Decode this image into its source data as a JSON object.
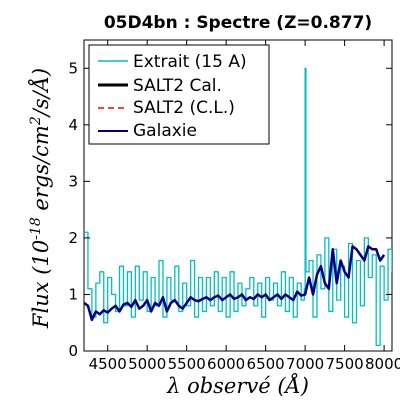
{
  "chart_data": {
    "type": "line",
    "title": "05D4bn : Spectre (Z=0.877)",
    "xlabel": "λ observé (Å)",
    "ylabel": "Flux (10^-18 ergs/cm^2/s/Å)",
    "xlim": [
      4200,
      8100
    ],
    "ylim": [
      0,
      5.5
    ],
    "x_ticks": [
      4500,
      5000,
      5500,
      6000,
      6500,
      7000,
      7500,
      8000
    ],
    "x_tick_labels": [
      "4500",
      "5000",
      "5500",
      "6000",
      "6500",
      "7000",
      "7500",
      "8000"
    ],
    "y_ticks": [
      0,
      1,
      2,
      3,
      4,
      5
    ],
    "y_tick_labels": [
      "0",
      "1",
      "2",
      "3",
      "4",
      "5"
    ],
    "legend_location": "upper-left",
    "colors": {
      "extrait": "#00bfbf",
      "salt2_cal": "#000000",
      "salt2_cl": "#ff0000",
      "galaxie": "#000080"
    },
    "series": [
      {
        "name": "Extrait (15 A)",
        "style": "step",
        "x": [
          4200,
          4250,
          4300,
          4350,
          4400,
          4450,
          4500,
          4550,
          4600,
          4650,
          4700,
          4750,
          4800,
          4850,
          4900,
          4950,
          5000,
          5050,
          5100,
          5150,
          5200,
          5250,
          5300,
          5350,
          5400,
          5450,
          5500,
          5550,
          5600,
          5650,
          5700,
          5750,
          5800,
          5850,
          5900,
          5950,
          6000,
          6050,
          6100,
          6150,
          6200,
          6250,
          6300,
          6350,
          6400,
          6450,
          6500,
          6550,
          6600,
          6650,
          6700,
          6750,
          6800,
          6850,
          6900,
          6950,
          6990,
          7000,
          7010,
          7050,
          7100,
          7150,
          7200,
          7250,
          7300,
          7350,
          7400,
          7450,
          7500,
          7550,
          7600,
          7650,
          7700,
          7750,
          7800,
          7850,
          7900,
          7950,
          8000,
          8050,
          8100
        ],
        "values": [
          2.1,
          1.1,
          0.6,
          1.2,
          1.4,
          0.5,
          1.3,
          1.0,
          0.7,
          1.5,
          0.8,
          1.4,
          0.6,
          1.5,
          0.9,
          1.4,
          0.7,
          1.3,
          0.8,
          1.6,
          0.6,
          1.3,
          0.9,
          1.5,
          0.7,
          1.2,
          0.8,
          1.6,
          0.6,
          1.3,
          0.7,
          1.3,
          0.8,
          1.4,
          0.7,
          1.3,
          0.6,
          1.4,
          0.7,
          1.2,
          0.8,
          1.1,
          1.3,
          0.8,
          1.2,
          0.6,
          1.3,
          0.9,
          1.2,
          0.8,
          1.4,
          0.7,
          1.3,
          0.6,
          1.2,
          0.9,
          1.1,
          5.0,
          1.4,
          1.6,
          0.6,
          1.7,
          1.1,
          2.0,
          0.7,
          1.8,
          0.9,
          1.5,
          0.6,
          1.9,
          0.5,
          1.6,
          0.8,
          2.0,
          1.3,
          1.7,
          0.1,
          1.5,
          0.9,
          1.8,
          1.4
        ]
      },
      {
        "name": "SALT2 Cal.",
        "style": "line",
        "x": [],
        "values": []
      },
      {
        "name": "SALT2 (C.L.)",
        "style": "dashed",
        "x": [],
        "values": []
      },
      {
        "name": "Galaxie",
        "style": "line",
        "x": [
          4200,
          4250,
          4300,
          4350,
          4400,
          4450,
          4500,
          4550,
          4600,
          4650,
          4700,
          4750,
          4800,
          4850,
          4900,
          4950,
          5000,
          5050,
          5100,
          5150,
          5200,
          5250,
          5300,
          5350,
          5400,
          5450,
          5500,
          5550,
          5600,
          5650,
          5700,
          5750,
          5800,
          5850,
          5900,
          5950,
          6000,
          6050,
          6100,
          6150,
          6200,
          6250,
          6300,
          6350,
          6400,
          6450,
          6500,
          6550,
          6600,
          6650,
          6700,
          6750,
          6800,
          6850,
          6900,
          6950,
          7000,
          7050,
          7100,
          7150,
          7200,
          7250,
          7300,
          7350,
          7400,
          7450,
          7500,
          7550,
          7600,
          7650,
          7700,
          7750,
          7800,
          7850,
          7900,
          7950,
          8000
        ],
        "values": [
          0.85,
          0.8,
          0.55,
          0.7,
          0.65,
          0.72,
          0.68,
          0.75,
          0.8,
          0.7,
          0.82,
          0.85,
          0.78,
          0.9,
          0.75,
          0.8,
          0.9,
          0.7,
          0.85,
          0.8,
          0.95,
          0.7,
          0.85,
          0.9,
          0.8,
          0.75,
          0.85,
          0.95,
          0.9,
          0.88,
          0.92,
          0.95,
          0.9,
          0.95,
          0.98,
          0.9,
          0.95,
          1.0,
          0.92,
          0.95,
          1.0,
          0.9,
          0.95,
          0.92,
          1.0,
          0.95,
          1.0,
          0.9,
          0.95,
          1.0,
          0.92,
          1.0,
          0.95,
          0.9,
          1.05,
          0.98,
          1.0,
          1.3,
          1.0,
          1.35,
          1.5,
          1.2,
          1.1,
          1.8,
          1.2,
          1.6,
          1.4,
          1.3,
          1.85,
          1.8,
          1.7,
          1.6,
          1.85,
          1.8,
          1.8,
          1.6,
          1.7
        ]
      }
    ]
  }
}
